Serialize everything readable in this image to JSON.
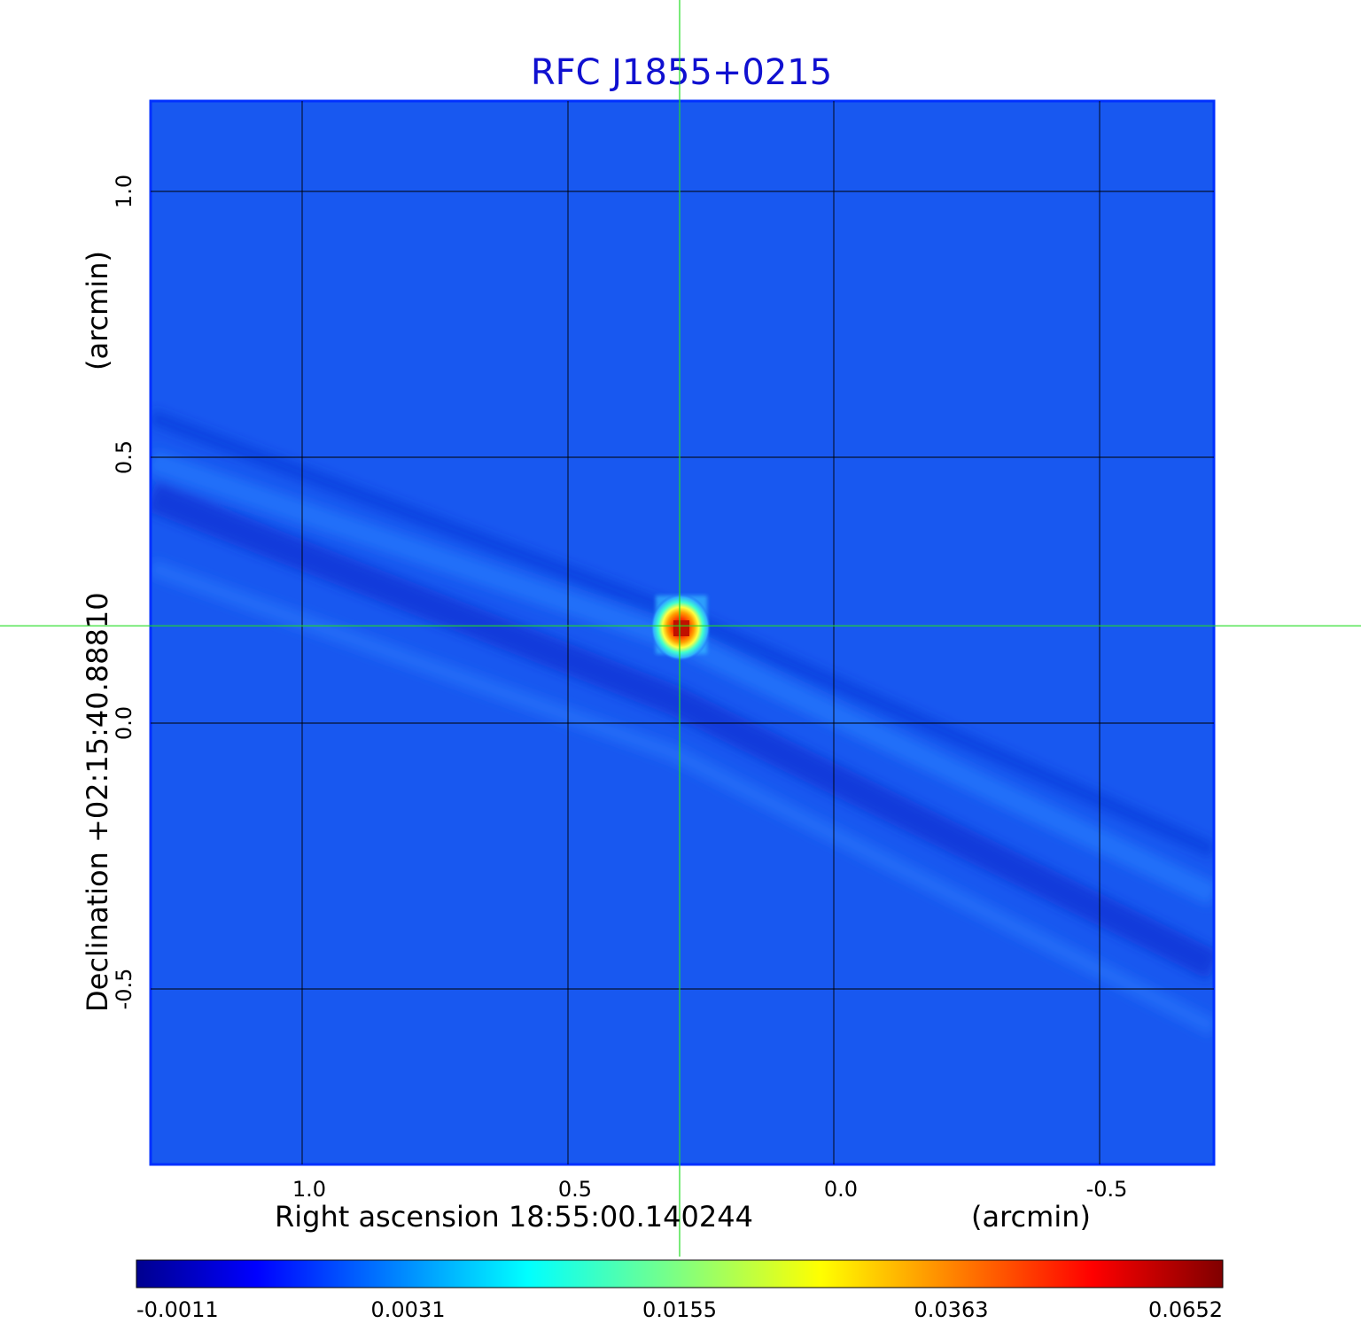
{
  "chart_data": {
    "type": "heatmap",
    "title": "RFC J1855+0215",
    "xlabel": "Right ascension  18:55:00.140244",
    "xlabel_unit": "(arcmin)",
    "ylabel": "Declination  +02:15:40.88810",
    "ylabel_unit": "(arcmin)",
    "x_ticks": [
      1.0,
      0.5,
      0.0,
      -0.5
    ],
    "x_tick_labels": [
      "1.0",
      "0.5",
      "0.0",
      "-0.5"
    ],
    "y_ticks": [
      1.0,
      0.5,
      0.0,
      -0.5
    ],
    "y_tick_labels": [
      "1.0",
      "0.5",
      "0.0",
      "-0.5"
    ],
    "xlim": [
      1.285,
      -0.715
    ],
    "ylim": [
      -0.83,
      1.17
    ],
    "grid": true,
    "source_position": {
      "x": 0.29,
      "y": 0.183,
      "peak": 0.0652
    },
    "crosshair": {
      "x": 0.29,
      "y": 0.183
    },
    "colorbar": {
      "ticks": [
        "-0.0011",
        "0.0031",
        "0.0155",
        "0.0363",
        "0.0652"
      ],
      "colormap": "jet"
    },
    "colors": {
      "background": "#1858f0",
      "grid": "#000000",
      "crosshair": "#22dd22",
      "title": "#1010d0"
    }
  }
}
